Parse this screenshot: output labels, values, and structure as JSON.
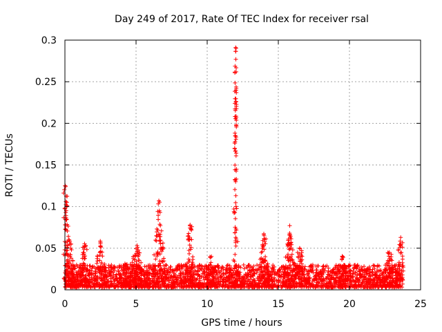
{
  "chart_data": {
    "type": "scatter",
    "title": "Day 249 of 2017, Rate Of TEC Index for receiver rsal",
    "xlabel": "GPS time / hours",
    "ylabel": "ROTI / TECUs",
    "xlim": [
      0,
      25
    ],
    "ylim": [
      0,
      0.3
    ],
    "xticks": [
      0,
      5,
      10,
      15,
      20,
      25
    ],
    "yticks": [
      0,
      0.05,
      0.1,
      0.15,
      0.2,
      0.25,
      0.3
    ],
    "xtick_labels": [
      "0",
      "5",
      "10",
      "15",
      "20",
      "25"
    ],
    "ytick_labels": [
      "0",
      "0.05",
      "0.1",
      "0.15",
      "0.2",
      "0.25",
      "0.3"
    ],
    "grid": true,
    "marker": "+",
    "color": "#ff0000",
    "series": [
      {
        "name": "ROTI",
        "x_range": [
          0,
          23.8
        ],
        "baseline_range": [
          0.003,
          0.03
        ],
        "peaks": [
          {
            "x": 0.05,
            "y": 0.124
          },
          {
            "x": 0.3,
            "y": 0.06
          },
          {
            "x": 1.4,
            "y": 0.053
          },
          {
            "x": 2.5,
            "y": 0.057
          },
          {
            "x": 4.3,
            "y": 0.03
          },
          {
            "x": 4.8,
            "y": 0.04
          },
          {
            "x": 5.1,
            "y": 0.051
          },
          {
            "x": 6.6,
            "y": 0.107
          },
          {
            "x": 8.8,
            "y": 0.078
          },
          {
            "x": 10.3,
            "y": 0.04
          },
          {
            "x": 12.0,
            "y": 0.291
          },
          {
            "x": 14.0,
            "y": 0.065
          },
          {
            "x": 15.8,
            "y": 0.077
          },
          {
            "x": 16.5,
            "y": 0.05
          },
          {
            "x": 19.5,
            "y": 0.04
          },
          {
            "x": 22.8,
            "y": 0.045
          },
          {
            "x": 23.6,
            "y": 0.063
          }
        ]
      }
    ]
  }
}
